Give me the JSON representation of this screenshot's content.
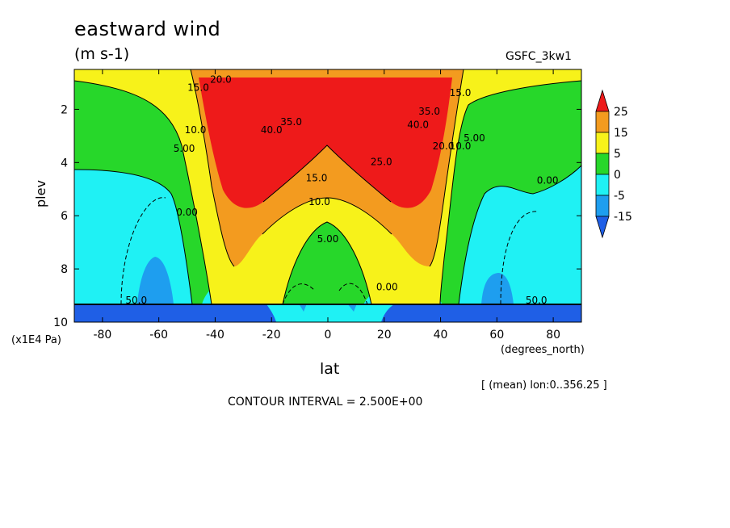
{
  "header": {
    "title": "eastward wind",
    "units": "(m s-1)",
    "model": "GSFC_3kw1"
  },
  "footer": {
    "y_scale": "(x1E4 Pa)",
    "x_units": "(degrees_north)",
    "x_label": "lat",
    "mean_note": "[ (mean) lon:0..356.25 ]",
    "contour_interval": "CONTOUR INTERVAL = 2.500E+00"
  },
  "chart_data": {
    "type": "heatmap",
    "title": "eastward wind",
    "units": "(m s-1)",
    "xlabel": "lat",
    "ylabel": "plev",
    "xlim": [
      -90,
      90
    ],
    "ylim": [
      10,
      0.5
    ],
    "x_ticks": [
      -80,
      -60,
      -40,
      -20,
      0,
      20,
      40,
      60,
      80
    ],
    "y_ticks": [
      2,
      4,
      6,
      8,
      10
    ],
    "contour_interval": 2.5,
    "colorbar": {
      "labels": [
        "25",
        "15",
        "5",
        "0",
        "-5",
        "-15"
      ],
      "colors": [
        "#ee1a1a",
        "#f39b1f",
        "#f7f21a",
        "#27d72a",
        "#1ff1f4",
        "#1e9eef",
        "#1f5fe6"
      ]
    },
    "contour_labels": [
      {
        "text": "20.0",
        "lat": -38,
        "plev": 1.0
      },
      {
        "text": "15.0",
        "lat": -46,
        "plev": 1.3
      },
      {
        "text": "10.0",
        "lat": -47,
        "plev": 2.9
      },
      {
        "text": "5.00",
        "lat": -51,
        "plev": 3.6
      },
      {
        "text": "0.00",
        "lat": -50,
        "plev": 6.0
      },
      {
        "text": "40.0",
        "lat": -20,
        "plev": 2.9
      },
      {
        "text": "35.0",
        "lat": -13,
        "plev": 2.6
      },
      {
        "text": "15.0",
        "lat": -4,
        "plev": 4.7
      },
      {
        "text": "10.0",
        "lat": -3,
        "plev": 5.6
      },
      {
        "text": "5.00",
        "lat": 0,
        "plev": 7.0
      },
      {
        "text": "25.0",
        "lat": 19,
        "plev": 4.1
      },
      {
        "text": "40.0",
        "lat": 32,
        "plev": 2.7
      },
      {
        "text": "35.0",
        "lat": 36,
        "plev": 2.2
      },
      {
        "text": "20.0",
        "lat": 41,
        "plev": 3.5
      },
      {
        "text": "10.0",
        "lat": 47,
        "plev": 3.5
      },
      {
        "text": "5.00",
        "lat": 52,
        "plev": 3.2
      },
      {
        "text": "15.0",
        "lat": 47,
        "plev": 1.5
      },
      {
        "text": "0.00",
        "lat": 78,
        "plev": 4.8
      },
      {
        "text": "0.00",
        "lat": 21,
        "plev": 8.8
      },
      {
        "text": "50.0",
        "lat": -68,
        "plev": 9.3
      },
      {
        "text": "50.0",
        "lat": 74,
        "plev": 9.3
      }
    ]
  }
}
